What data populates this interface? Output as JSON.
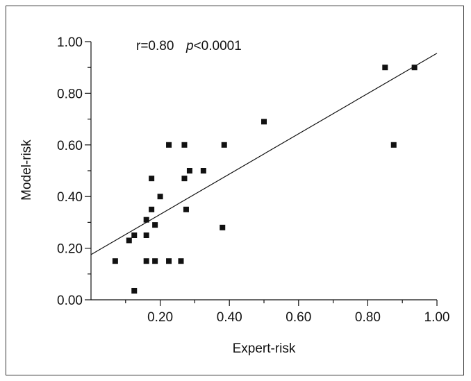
{
  "chart_data": {
    "type": "scatter",
    "xlabel": "Expert-risk",
    "ylabel": "Model-risk",
    "annotation": {
      "r_text": "r=0.80",
      "p_symbol": "p",
      "p_value": "<0.0001"
    },
    "xlim": [
      0,
      1
    ],
    "ylim": [
      0,
      1
    ],
    "x_ticks": [
      0.2,
      0.4,
      0.6,
      0.8,
      1.0
    ],
    "x_tick_labels": [
      "0.20",
      "0.40",
      "0.60",
      "0.80",
      "1.00"
    ],
    "y_ticks": [
      0.0,
      0.2,
      0.4,
      0.6,
      0.8,
      1.0
    ],
    "y_tick_labels": [
      "0.00",
      "0.20",
      "0.40",
      "0.60",
      "0.80",
      "1.00"
    ],
    "grid": false,
    "colors": {
      "points": "#111111",
      "line": "#111111",
      "axis": "#111111"
    },
    "points": [
      {
        "x": 0.07,
        "y": 0.15
      },
      {
        "x": 0.11,
        "y": 0.23
      },
      {
        "x": 0.125,
        "y": 0.25
      },
      {
        "x": 0.125,
        "y": 0.035
      },
      {
        "x": 0.16,
        "y": 0.31
      },
      {
        "x": 0.16,
        "y": 0.25
      },
      {
        "x": 0.16,
        "y": 0.15
      },
      {
        "x": 0.175,
        "y": 0.35
      },
      {
        "x": 0.175,
        "y": 0.47
      },
      {
        "x": 0.185,
        "y": 0.29
      },
      {
        "x": 0.185,
        "y": 0.15
      },
      {
        "x": 0.2,
        "y": 0.4
      },
      {
        "x": 0.225,
        "y": 0.6
      },
      {
        "x": 0.225,
        "y": 0.15
      },
      {
        "x": 0.26,
        "y": 0.15
      },
      {
        "x": 0.27,
        "y": 0.6
      },
      {
        "x": 0.27,
        "y": 0.47
      },
      {
        "x": 0.275,
        "y": 0.35
      },
      {
        "x": 0.285,
        "y": 0.5
      },
      {
        "x": 0.325,
        "y": 0.5
      },
      {
        "x": 0.38,
        "y": 0.28
      },
      {
        "x": 0.385,
        "y": 0.6
      },
      {
        "x": 0.5,
        "y": 0.69
      },
      {
        "x": 0.85,
        "y": 0.9
      },
      {
        "x": 0.875,
        "y": 0.6
      },
      {
        "x": 0.935,
        "y": 0.9
      }
    ],
    "regression_line": {
      "x": [
        0.0,
        1.0
      ],
      "y": [
        0.175,
        0.955
      ]
    }
  }
}
